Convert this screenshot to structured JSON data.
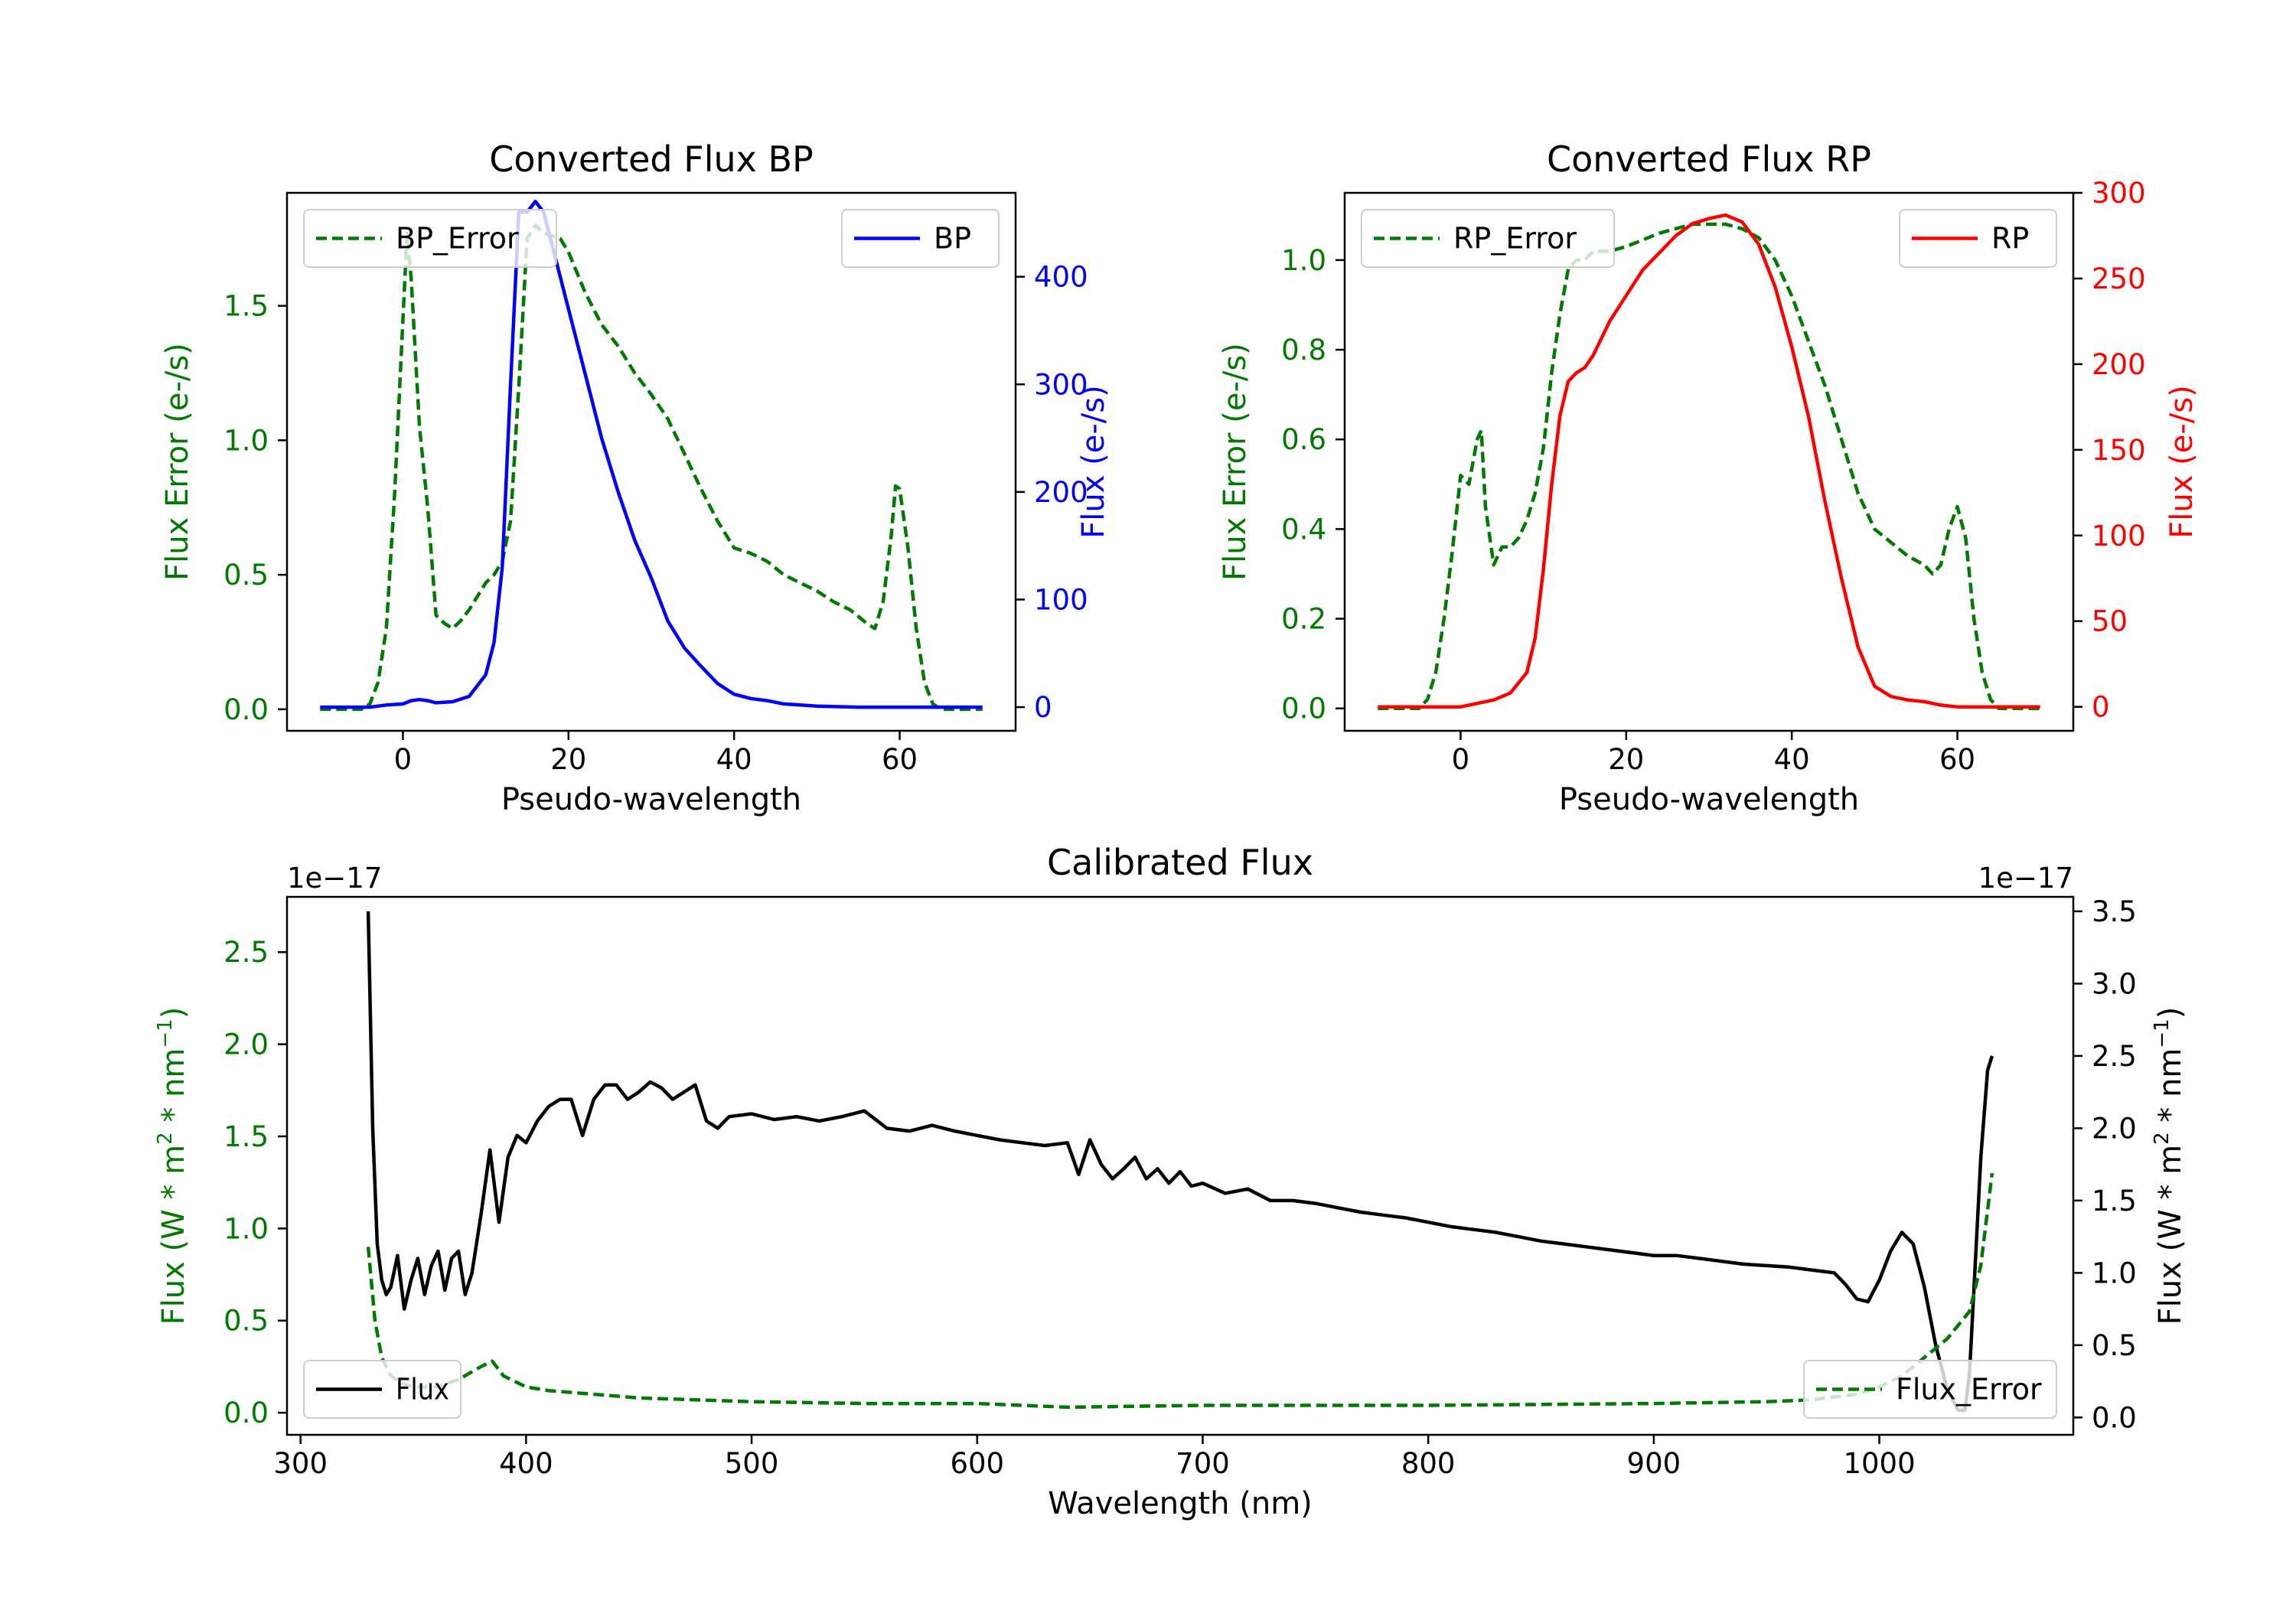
{
  "colors": {
    "green": "#007a00",
    "blue": "#0000ff",
    "red": "#ff0000",
    "black": "#000000"
  },
  "chart_data": [
    {
      "type": "line",
      "title": "Converted Flux BP",
      "xlabel": "Pseudo-wavelength",
      "xlim": [
        -14,
        74
      ],
      "xticks": [
        "0",
        "20",
        "40",
        "60"
      ],
      "y_left": {
        "label": "Flux Error (e-/s)",
        "lim": [
          -0.08,
          1.92
        ],
        "ticks": [
          "0.0",
          "0.5",
          "1.0",
          "1.5"
        ]
      },
      "y_right": {
        "label": "Flux (e-/s)",
        "lim": [
          -22,
          478
        ],
        "ticks": [
          "0",
          "100",
          "200",
          "300",
          "400"
        ]
      },
      "series": [
        {
          "name": "BP_Error",
          "axis": "left",
          "style": "dashed",
          "color": "green",
          "x": [
            -10,
            -5,
            -4,
            -3,
            -2,
            -1,
            0,
            0.5,
            1,
            2,
            3,
            4,
            5,
            6,
            7,
            8,
            9,
            10,
            11,
            12,
            13,
            14,
            15,
            16,
            17,
            18,
            19,
            20,
            22,
            24,
            26,
            28,
            30,
            32,
            34,
            36,
            38,
            40,
            42,
            44,
            46,
            48,
            50,
            52,
            54,
            56,
            57,
            58,
            59,
            59.5,
            60,
            61,
            62,
            63,
            64,
            65,
            66,
            68,
            70
          ],
          "y": [
            0,
            0,
            0.02,
            0.1,
            0.3,
            0.8,
            1.45,
            1.77,
            1.6,
            1.05,
            0.75,
            0.35,
            0.32,
            0.3,
            0.33,
            0.37,
            0.42,
            0.47,
            0.5,
            0.55,
            0.7,
            1.2,
            1.75,
            1.8,
            1.77,
            1.76,
            1.75,
            1.7,
            1.55,
            1.43,
            1.35,
            1.25,
            1.17,
            1.08,
            0.95,
            0.82,
            0.7,
            0.6,
            0.58,
            0.55,
            0.5,
            0.47,
            0.44,
            0.4,
            0.37,
            0.32,
            0.3,
            0.4,
            0.65,
            0.83,
            0.82,
            0.6,
            0.3,
            0.1,
            0.02,
            0,
            0,
            0,
            0
          ]
        },
        {
          "name": "BP",
          "axis": "right",
          "style": "solid",
          "color": "blue",
          "x": [
            -10,
            -4,
            -2,
            0,
            1,
            2,
            3,
            4,
            6,
            8,
            10,
            11,
            12,
            13,
            14,
            15,
            16,
            17,
            18,
            19,
            20,
            22,
            24,
            26,
            28,
            30,
            32,
            34,
            36,
            38,
            40,
            42,
            44,
            46,
            48,
            50,
            55,
            60,
            65,
            70
          ],
          "y": [
            0,
            0,
            2,
            3,
            6,
            7,
            6,
            4,
            5,
            10,
            30,
            60,
            130,
            300,
            460,
            460,
            470,
            460,
            430,
            400,
            370,
            310,
            250,
            200,
            155,
            120,
            80,
            55,
            38,
            22,
            12,
            8,
            6,
            3,
            2,
            1,
            0,
            0,
            0,
            0
          ]
        }
      ],
      "legend": [
        {
          "label": "BP_Error",
          "placement": "upper left"
        },
        {
          "label": "BP",
          "placement": "upper right"
        }
      ]
    },
    {
      "type": "line",
      "title": "Converted Flux RP",
      "xlabel": "Pseudo-wavelength",
      "xlim": [
        -14,
        74
      ],
      "xticks": [
        "0",
        "20",
        "40",
        "60"
      ],
      "y_left": {
        "label": "Flux Error (e-/s)",
        "lim": [
          -0.05,
          1.15
        ],
        "ticks": [
          "0.0",
          "0.2",
          "0.4",
          "0.6",
          "0.8",
          "1.0"
        ]
      },
      "y_right": {
        "label": "Flux (e-/s)",
        "lim": [
          -14,
          300
        ],
        "ticks": [
          "0",
          "50",
          "100",
          "150",
          "200",
          "250",
          "300"
        ]
      },
      "series": [
        {
          "name": "RP_Error",
          "axis": "left",
          "style": "dashed",
          "color": "green",
          "x": [
            -10,
            -5,
            -4,
            -3,
            -2,
            -1,
            0,
            1,
            2,
            2.5,
            3,
            4,
            5,
            6,
            7,
            8,
            9,
            10,
            11,
            12,
            13,
            14,
            15,
            16,
            18,
            20,
            24,
            28,
            32,
            34,
            36,
            38,
            40,
            42,
            44,
            46,
            48,
            50,
            52,
            54,
            55,
            56,
            57,
            58,
            59,
            60,
            61,
            62,
            63,
            64,
            65,
            66,
            70
          ],
          "y": [
            0,
            0,
            0.02,
            0.08,
            0.2,
            0.35,
            0.52,
            0.5,
            0.6,
            0.62,
            0.45,
            0.32,
            0.36,
            0.36,
            0.38,
            0.42,
            0.48,
            0.58,
            0.75,
            0.88,
            0.98,
            1.0,
            1.0,
            1.02,
            1.02,
            1.03,
            1.06,
            1.08,
            1.08,
            1.07,
            1.05,
            1.0,
            0.92,
            0.82,
            0.72,
            0.6,
            0.48,
            0.4,
            0.37,
            0.34,
            0.33,
            0.32,
            0.3,
            0.32,
            0.4,
            0.45,
            0.38,
            0.2,
            0.08,
            0.02,
            0,
            0,
            0
          ]
        },
        {
          "name": "RP",
          "axis": "right",
          "style": "solid",
          "color": "red",
          "x": [
            -10,
            0,
            2,
            4,
            6,
            8,
            9,
            10,
            11,
            12,
            13,
            14,
            15,
            16,
            17,
            18,
            20,
            22,
            24,
            26,
            28,
            30,
            32,
            34,
            36,
            38,
            40,
            42,
            44,
            46,
            48,
            50,
            52,
            54,
            56,
            58,
            60,
            62,
            64,
            70
          ],
          "y": [
            0,
            0,
            2,
            4,
            8,
            20,
            40,
            80,
            130,
            170,
            190,
            195,
            198,
            205,
            215,
            225,
            240,
            255,
            265,
            275,
            282,
            285,
            287,
            283,
            270,
            245,
            210,
            170,
            120,
            75,
            35,
            12,
            6,
            4,
            3,
            1,
            0,
            0,
            0,
            0
          ]
        }
      ],
      "legend": [
        {
          "label": "RP_Error",
          "placement": "upper left"
        },
        {
          "label": "RP",
          "placement": "upper right"
        }
      ]
    },
    {
      "type": "line",
      "title": "Calibrated Flux",
      "xlabel": "Wavelength (nm)",
      "xlim": [
        294,
        1086
      ],
      "xticks": [
        "300",
        "400",
        "500",
        "600",
        "700",
        "800",
        "900",
        "1000"
      ],
      "y_left": {
        "label": "Flux (W * m$^2$ * nm$^{-1}$)",
        "lim": [
          -0.12,
          2.8
        ],
        "ticks": [
          "0.0",
          "0.5",
          "1.0",
          "1.5",
          "2.0",
          "2.5"
        ],
        "offset_text": "1e−17"
      },
      "y_right": {
        "label": "Flux (W * m$^2$ * nm$^{-1}$)",
        "lim": [
          -0.12,
          3.6
        ],
        "ticks": [
          "0.0",
          "0.5",
          "1.0",
          "1.5",
          "2.0",
          "2.5",
          "3.0",
          "3.5"
        ],
        "offset_text": "1e−17"
      },
      "series": [
        {
          "name": "Flux",
          "axis": "right",
          "style": "solid",
          "color": "black",
          "x": [
            330,
            332,
            334,
            336,
            338,
            340,
            343,
            346,
            349,
            352,
            355,
            358,
            361,
            364,
            367,
            370,
            373,
            376,
            380,
            384,
            388,
            392,
            396,
            400,
            405,
            410,
            415,
            420,
            425,
            430,
            435,
            440,
            445,
            450,
            455,
            460,
            465,
            470,
            475,
            480,
            485,
            490,
            500,
            510,
            520,
            530,
            540,
            550,
            560,
            570,
            580,
            590,
            600,
            610,
            620,
            630,
            640,
            645,
            650,
            655,
            660,
            665,
            670,
            675,
            680,
            685,
            690,
            695,
            700,
            710,
            720,
            730,
            740,
            750,
            760,
            770,
            780,
            790,
            800,
            810,
            820,
            830,
            840,
            850,
            860,
            870,
            880,
            890,
            900,
            910,
            920,
            930,
            940,
            950,
            960,
            970,
            980,
            985,
            990,
            995,
            1000,
            1005,
            1010,
            1015,
            1020,
            1025,
            1030,
            1035,
            1038,
            1040,
            1042,
            1045,
            1048,
            1050
          ],
          "y": [
            3.5,
            2.0,
            1.2,
            0.95,
            0.85,
            0.9,
            1.12,
            0.75,
            0.95,
            1.1,
            0.85,
            1.05,
            1.15,
            0.88,
            1.1,
            1.15,
            0.85,
            1.0,
            1.4,
            1.85,
            1.35,
            1.8,
            1.95,
            1.9,
            2.05,
            2.15,
            2.2,
            2.2,
            1.95,
            2.2,
            2.3,
            2.3,
            2.2,
            2.25,
            2.32,
            2.28,
            2.2,
            2.25,
            2.3,
            2.05,
            2.0,
            2.08,
            2.1,
            2.06,
            2.08,
            2.05,
            2.08,
            2.12,
            2.0,
            1.98,
            2.02,
            1.98,
            1.95,
            1.92,
            1.9,
            1.88,
            1.9,
            1.68,
            1.92,
            1.75,
            1.65,
            1.72,
            1.8,
            1.65,
            1.72,
            1.62,
            1.7,
            1.6,
            1.62,
            1.55,
            1.58,
            1.5,
            1.5,
            1.48,
            1.45,
            1.42,
            1.4,
            1.38,
            1.35,
            1.32,
            1.3,
            1.28,
            1.25,
            1.22,
            1.2,
            1.18,
            1.16,
            1.14,
            1.12,
            1.12,
            1.1,
            1.08,
            1.06,
            1.05,
            1.04,
            1.02,
            1.0,
            0.92,
            0.82,
            0.8,
            0.95,
            1.15,
            1.28,
            1.2,
            0.9,
            0.5,
            0.2,
            0.05,
            0.05,
            0.3,
            0.9,
            1.8,
            2.4,
            2.5
          ]
        },
        {
          "name": "Flux_Error",
          "axis": "left",
          "style": "dashed",
          "color": "green",
          "x": [
            330,
            333,
            336,
            340,
            345,
            350,
            360,
            370,
            380,
            385,
            390,
            400,
            410,
            430,
            450,
            500,
            550,
            600,
            640,
            700,
            800,
            900,
            950,
            970,
            990,
            1000,
            1010,
            1020,
            1030,
            1040,
            1045,
            1050
          ],
          "y": [
            0.9,
            0.5,
            0.3,
            0.2,
            0.16,
            0.14,
            0.14,
            0.18,
            0.25,
            0.28,
            0.2,
            0.14,
            0.12,
            0.1,
            0.08,
            0.06,
            0.05,
            0.05,
            0.03,
            0.04,
            0.04,
            0.05,
            0.06,
            0.07,
            0.1,
            0.14,
            0.2,
            0.3,
            0.4,
            0.55,
            0.8,
            1.3
          ]
        }
      ],
      "legend": [
        {
          "label": "Flux",
          "placement": "lower left"
        },
        {
          "label": "Flux_Error",
          "placement": "lower right"
        }
      ]
    }
  ]
}
